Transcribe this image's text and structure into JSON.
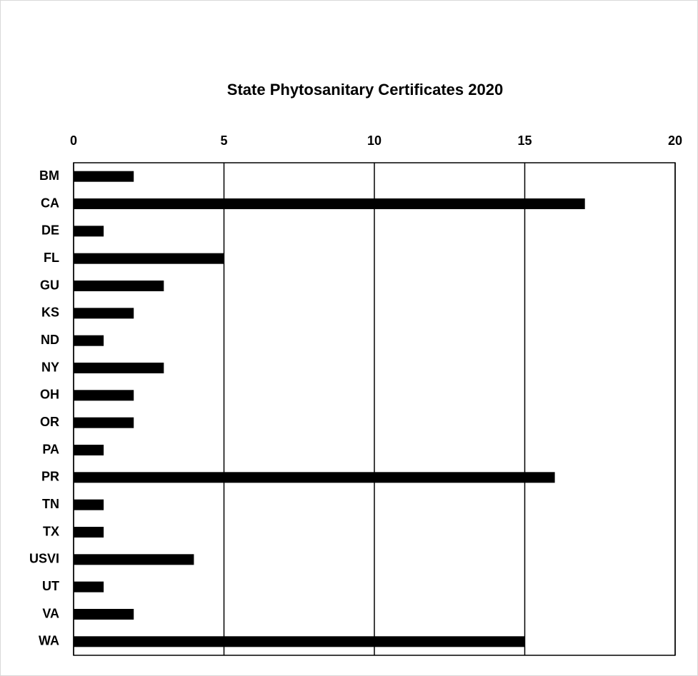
{
  "chart_data": {
    "type": "bar",
    "orientation": "horizontal",
    "title": "State Phytosanitary Certificates 2020",
    "categories": [
      "BM",
      "CA",
      "DE",
      "FL",
      "GU",
      "KS",
      "ND",
      "NY",
      "OH",
      "OR",
      "PA",
      "PR",
      "TN",
      "TX",
      "USVI",
      "UT",
      "VA",
      "WA"
    ],
    "values": [
      2,
      17,
      1,
      5,
      3,
      2,
      1,
      3,
      2,
      2,
      1,
      16,
      1,
      1,
      4,
      1,
      2,
      15
    ],
    "color": "#000000",
    "xlim": [
      0,
      20
    ],
    "xticks": [
      0,
      5,
      10,
      15,
      20
    ],
    "grid": true
  }
}
